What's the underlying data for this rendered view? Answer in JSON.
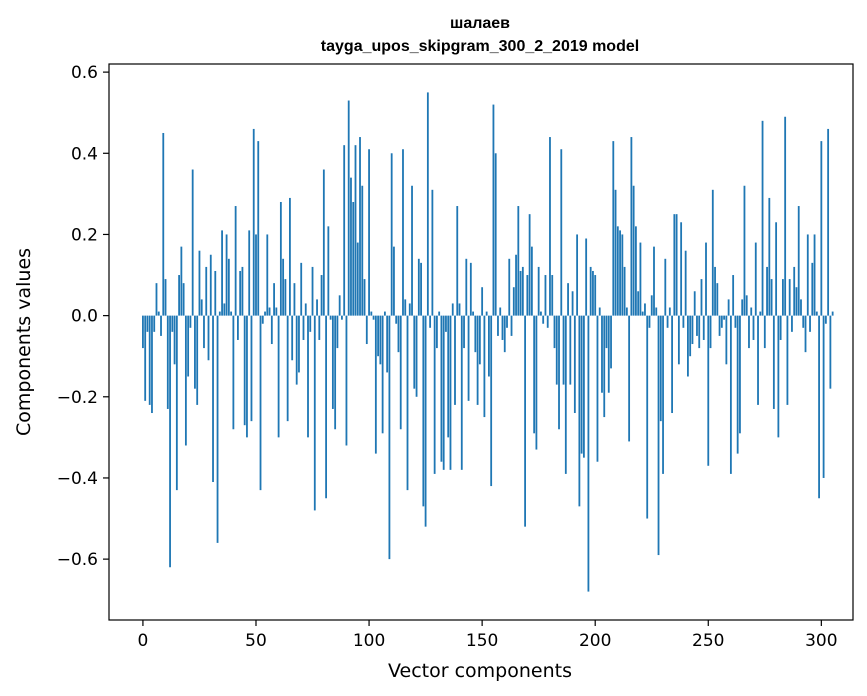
{
  "chart_data": {
    "type": "bar",
    "title_line1": "шалаев",
    "title_line2": "tayga_upos_skipgram_300_2_2019 model",
    "xlabel": "Vector components",
    "ylabel": "Components values",
    "xlim": [
      -15,
      314
    ],
    "ylim": [
      -0.75,
      0.62
    ],
    "xticks": [
      0,
      50,
      100,
      150,
      200,
      250,
      300
    ],
    "xtick_labels": [
      "0",
      "50",
      "100",
      "150",
      "200",
      "250",
      "300"
    ],
    "yticks": [
      -0.6,
      -0.4,
      -0.2,
      0.0,
      0.2,
      0.4,
      0.6
    ],
    "ytick_labels": [
      "−0.6",
      "−0.4",
      "−0.2",
      "0.0",
      "0.2",
      "0.4",
      "0.6"
    ],
    "bar_color": "#1f77b4",
    "values": [
      -0.08,
      -0.21,
      -0.04,
      -0.22,
      -0.24,
      -0.04,
      0.08,
      0.01,
      -0.05,
      0.45,
      0.09,
      -0.23,
      -0.62,
      -0.04,
      -0.12,
      -0.43,
      0.1,
      0.17,
      0.08,
      -0.32,
      -0.15,
      -0.03,
      0.36,
      -0.18,
      -0.22,
      0.16,
      0.04,
      -0.08,
      0.12,
      -0.11,
      0.15,
      -0.41,
      0.11,
      -0.56,
      0.01,
      0.21,
      0.03,
      0.2,
      0.14,
      0.01,
      -0.28,
      0.27,
      -0.06,
      0.11,
      0.12,
      -0.27,
      -0.3,
      0.21,
      -0.26,
      0.46,
      0.2,
      0.43,
      -0.43,
      -0.02,
      0.01,
      0.2,
      0.02,
      -0.07,
      0.08,
      0.02,
      -0.3,
      0.28,
      0.14,
      0.09,
      -0.26,
      0.29,
      -0.11,
      0.08,
      -0.17,
      -0.14,
      0.13,
      -0.06,
      0.03,
      -0.3,
      -0.04,
      0.12,
      -0.48,
      0.04,
      -0.06,
      0.1,
      0.36,
      -0.45,
      0.22,
      -0.01,
      -0.23,
      -0.28,
      -0.08,
      0.05,
      -0.01,
      0.42,
      -0.32,
      0.53,
      0.34,
      0.28,
      0.42,
      0.18,
      0.44,
      0.32,
      0.09,
      -0.07,
      0.41,
      0.01,
      -0.01,
      -0.34,
      -0.1,
      -0.12,
      -0.29,
      0.01,
      -0.14,
      -0.6,
      0.4,
      0.17,
      -0.02,
      -0.09,
      -0.28,
      0.41,
      0.04,
      -0.43,
      0.03,
      0.32,
      -0.18,
      -0.2,
      0.14,
      0.13,
      -0.47,
      -0.52,
      0.55,
      -0.03,
      0.31,
      -0.39,
      -0.08,
      0.01,
      -0.36,
      -0.38,
      -0.04,
      -0.3,
      -0.38,
      0.03,
      -0.22,
      0.27,
      0.03,
      -0.38,
      -0.08,
      0.14,
      -0.21,
      0.13,
      0.01,
      -0.09,
      -0.22,
      -0.12,
      0.07,
      -0.25,
      0.01,
      -0.15,
      -0.42,
      0.52,
      0.4,
      -0.05,
      0.02,
      -0.06,
      -0.09,
      -0.03,
      0.14,
      -0.05,
      0.07,
      0.15,
      0.27,
      0.11,
      0.12,
      -0.52,
      0.1,
      0.25,
      0.17,
      -0.29,
      -0.33,
      0.12,
      0.01,
      -0.02,
      0.1,
      -0.03,
      0.44,
      0.1,
      -0.08,
      -0.17,
      -0.28,
      0.41,
      -0.17,
      -0.39,
      0.08,
      -0.17,
      0.06,
      -0.24,
      0.2,
      -0.47,
      -0.34,
      -0.35,
      0.19,
      -0.68,
      0.12,
      0.11,
      0.1,
      -0.36,
      0.02,
      -0.19,
      -0.25,
      -0.08,
      -0.19,
      -0.13,
      0.43,
      0.31,
      0.22,
      0.21,
      0.2,
      0.12,
      0.02,
      -0.31,
      0.44,
      0.32,
      0.22,
      0.06,
      0.18,
      0.01,
      0.03,
      -0.5,
      -0.03,
      0.05,
      0.17,
      0.02,
      -0.59,
      -0.26,
      -0.39,
      0.14,
      -0.03,
      0.02,
      -0.24,
      0.25,
      0.25,
      -0.12,
      0.23,
      -0.03,
      0.16,
      -0.15,
      -0.1,
      -0.07,
      0.06,
      -0.05,
      -0.08,
      0.09,
      -0.06,
      0.18,
      -0.37,
      -0.08,
      0.31,
      0.12,
      0.08,
      -0.05,
      -0.03,
      -0.01,
      -0.12,
      0.04,
      -0.39,
      0.1,
      -0.03,
      -0.34,
      -0.29,
      0.04,
      0.32,
      0.05,
      -0.08,
      0.02,
      -0.06,
      0.18,
      -0.22,
      0.01,
      0.48,
      -0.08,
      0.12,
      0.29,
      0.09,
      -0.23,
      0.23,
      -0.3,
      -0.06,
      0.09,
      0.49,
      -0.22,
      0.09,
      -0.04,
      0.12,
      0.07,
      0.27,
      0.04,
      -0.03,
      -0.09,
      0.2,
      -0.04,
      0.13,
      0.2,
      0.01,
      -0.45,
      0.43,
      -0.4,
      -0.02,
      0.46,
      -0.18,
      0.01
    ]
  }
}
